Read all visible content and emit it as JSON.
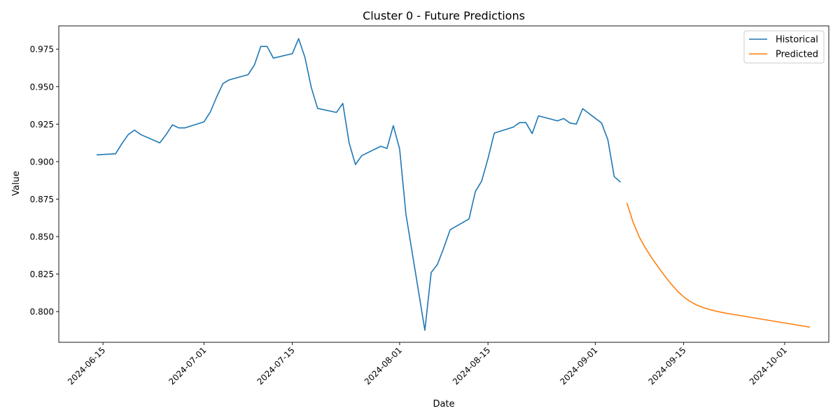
{
  "chart_data": {
    "type": "line",
    "title": "Cluster 0 - Future Predictions",
    "xlabel": "Date",
    "ylabel": "Value",
    "x_type": "date",
    "xlim": [
      "2024-06-08",
      "2024-10-08"
    ],
    "ylim": [
      0.7795,
      0.9905
    ],
    "x_ticks": [
      "2024-06-15",
      "2024-07-01",
      "2024-07-15",
      "2024-08-01",
      "2024-08-15",
      "2024-09-01",
      "2024-09-15",
      "2024-10-01"
    ],
    "y_ticks": [
      0.8,
      0.825,
      0.85,
      0.875,
      0.9,
      0.925,
      0.95,
      0.975
    ],
    "y_tick_labels": [
      "0.800",
      "0.825",
      "0.850",
      "0.875",
      "0.900",
      "0.925",
      "0.950",
      "0.975"
    ],
    "grid": false,
    "legend_position": "top-right",
    "series": [
      {
        "name": "Historical",
        "color": "#1f77b4",
        "points": [
          [
            "2024-06-14",
            0.9045
          ],
          [
            "2024-06-17",
            0.9052
          ],
          [
            "2024-06-18",
            0.912
          ],
          [
            "2024-06-19",
            0.918
          ],
          [
            "2024-06-20",
            0.921
          ],
          [
            "2024-06-21",
            0.918
          ],
          [
            "2024-06-24",
            0.9125
          ],
          [
            "2024-06-25",
            0.918
          ],
          [
            "2024-06-26",
            0.9245
          ],
          [
            "2024-06-27",
            0.9225
          ],
          [
            "2024-06-28",
            0.9225
          ],
          [
            "2024-07-01",
            0.9265
          ],
          [
            "2024-07-02",
            0.933
          ],
          [
            "2024-07-03",
            0.943
          ],
          [
            "2024-07-04",
            0.952
          ],
          [
            "2024-07-05",
            0.9545
          ],
          [
            "2024-07-08",
            0.958
          ],
          [
            "2024-07-09",
            0.9645
          ],
          [
            "2024-07-10",
            0.9768
          ],
          [
            "2024-07-11",
            0.9768
          ],
          [
            "2024-07-12",
            0.969
          ],
          [
            "2024-07-15",
            0.972
          ],
          [
            "2024-07-16",
            0.982
          ],
          [
            "2024-07-17",
            0.9695
          ],
          [
            "2024-07-18",
            0.9495
          ],
          [
            "2024-07-19",
            0.9355
          ],
          [
            "2024-07-22",
            0.9328
          ],
          [
            "2024-07-23",
            0.9388
          ],
          [
            "2024-07-24",
            0.9125
          ],
          [
            "2024-07-25",
            0.898
          ],
          [
            "2024-07-26",
            0.904
          ],
          [
            "2024-07-29",
            0.9102
          ],
          [
            "2024-07-30",
            0.9088
          ],
          [
            "2024-07-31",
            0.924
          ],
          [
            "2024-08-01",
            0.9085
          ],
          [
            "2024-08-02",
            0.865
          ],
          [
            "2024-08-05",
            0.7875
          ],
          [
            "2024-08-06",
            0.826
          ],
          [
            "2024-08-07",
            0.8315
          ],
          [
            "2024-08-08",
            0.8425
          ],
          [
            "2024-08-09",
            0.8545
          ],
          [
            "2024-08-12",
            0.8618
          ],
          [
            "2024-08-13",
            0.88
          ],
          [
            "2024-08-14",
            0.887
          ],
          [
            "2024-08-15",
            0.902
          ],
          [
            "2024-08-16",
            0.919
          ],
          [
            "2024-08-19",
            0.923
          ],
          [
            "2024-08-20",
            0.926
          ],
          [
            "2024-08-21",
            0.926
          ],
          [
            "2024-08-22",
            0.9187
          ],
          [
            "2024-08-23",
            0.9305
          ],
          [
            "2024-08-26",
            0.9272
          ],
          [
            "2024-08-27",
            0.9287
          ],
          [
            "2024-08-28",
            0.9257
          ],
          [
            "2024-08-29",
            0.925
          ],
          [
            "2024-08-30",
            0.9353
          ],
          [
            "2024-09-02",
            0.9257
          ],
          [
            "2024-09-03",
            0.9145
          ],
          [
            "2024-09-04",
            0.89
          ],
          [
            "2024-09-05",
            0.8863
          ]
        ]
      },
      {
        "name": "Predicted",
        "color": "#ff7f0e",
        "points": [
          [
            "2024-09-06",
            0.8725
          ],
          [
            "2024-09-07",
            0.8595
          ],
          [
            "2024-09-08",
            0.8495
          ],
          [
            "2024-09-09",
            0.842
          ],
          [
            "2024-09-10",
            0.8355
          ],
          [
            "2024-09-11",
            0.8295
          ],
          [
            "2024-09-12",
            0.8238
          ],
          [
            "2024-09-13",
            0.8185
          ],
          [
            "2024-09-14",
            0.8137
          ],
          [
            "2024-09-15",
            0.8098
          ],
          [
            "2024-09-16",
            0.8068
          ],
          [
            "2024-09-17",
            0.8045
          ],
          [
            "2024-09-18",
            0.8028
          ],
          [
            "2024-09-19",
            0.8015
          ],
          [
            "2024-09-20",
            0.8004
          ],
          [
            "2024-09-21",
            0.7995
          ],
          [
            "2024-09-22",
            0.7987
          ],
          [
            "2024-09-23",
            0.798
          ],
          [
            "2024-09-24",
            0.7973
          ],
          [
            "2024-09-25",
            0.7966
          ],
          [
            "2024-09-26",
            0.7959
          ],
          [
            "2024-09-27",
            0.7952
          ],
          [
            "2024-09-28",
            0.7945
          ],
          [
            "2024-09-29",
            0.7938
          ],
          [
            "2024-09-30",
            0.7931
          ],
          [
            "2024-10-01",
            0.7924
          ],
          [
            "2024-10-02",
            0.7917
          ],
          [
            "2024-10-03",
            0.791
          ],
          [
            "2024-10-04",
            0.7903
          ],
          [
            "2024-10-05",
            0.7896
          ]
        ]
      }
    ]
  }
}
